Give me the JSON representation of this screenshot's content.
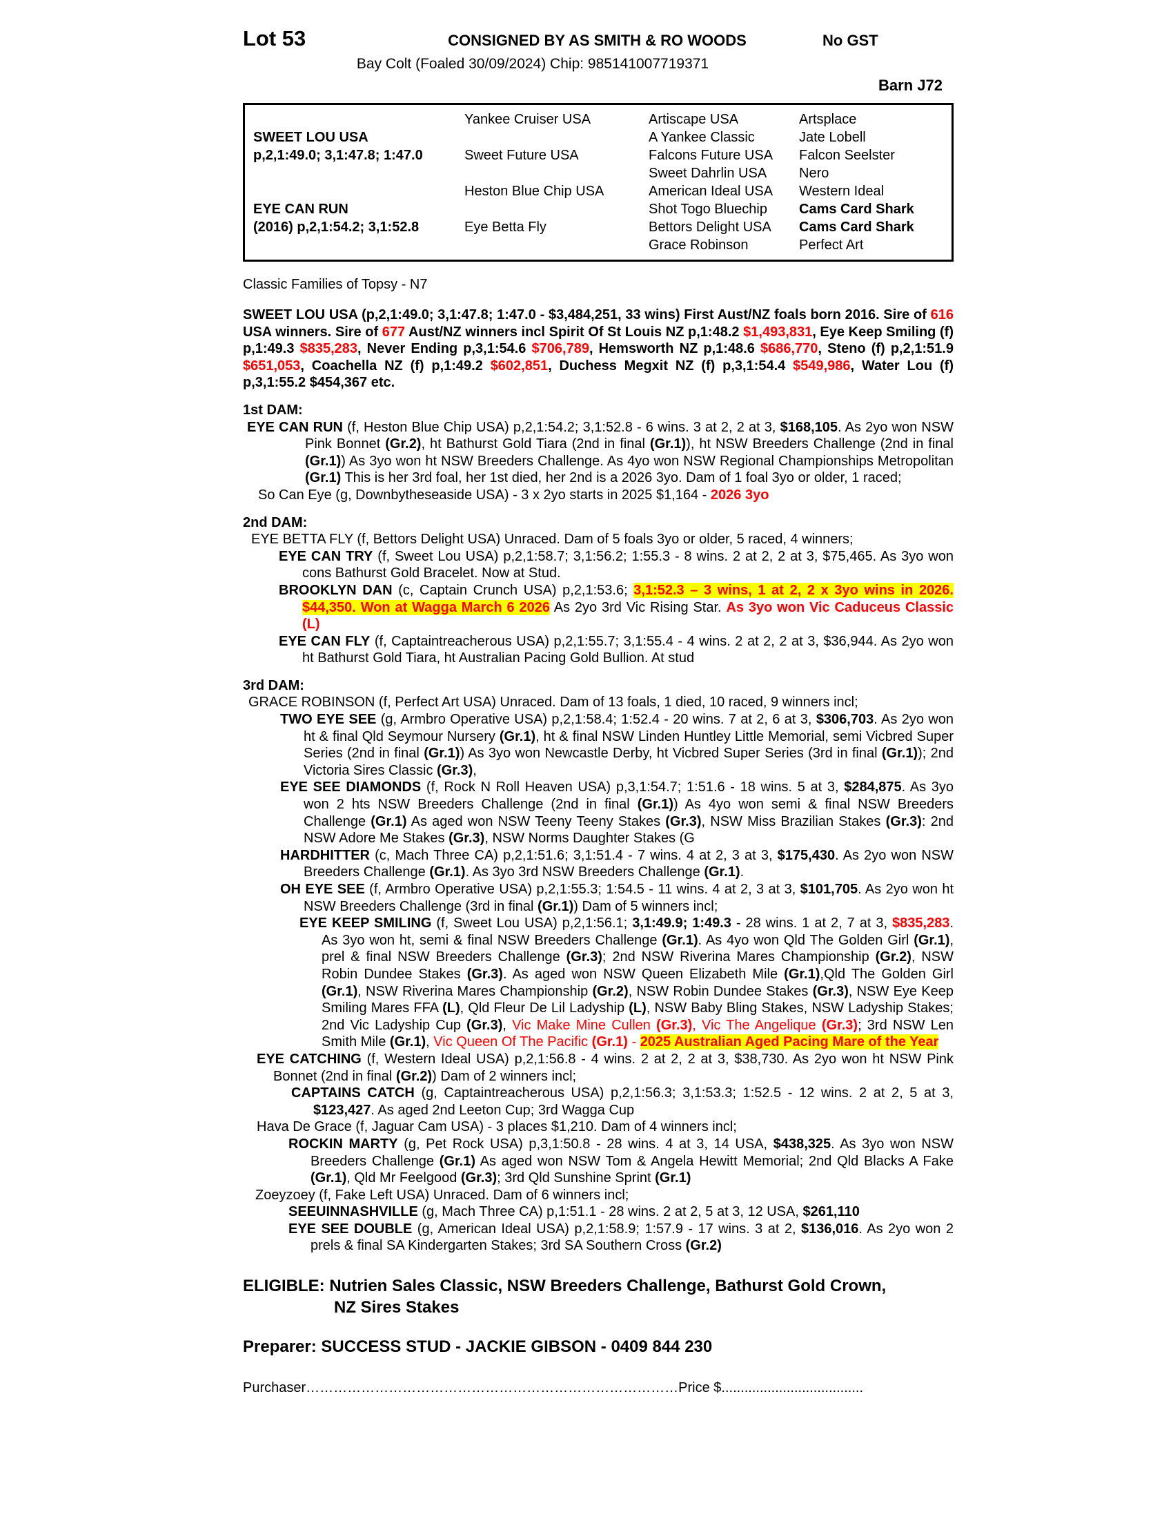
{
  "colors": {
    "red": "#ff0000",
    "highlight": "#ffff00"
  },
  "header": {
    "lot": "Lot 53",
    "consigned": "CONSIGNED BY AS SMITH & RO WOODS",
    "gst": "No GST",
    "description": "Bay Colt (Foaled 30/09/2024) Chip: 985141007719371",
    "barn": "Barn J72"
  },
  "pedigree": {
    "rows": [
      [
        "",
        "Yankee Cruiser USA",
        "Artiscape USA",
        "Artsplace"
      ],
      [
        "SWEET LOU USA",
        "",
        "A Yankee Classic",
        "Jate Lobell"
      ],
      [
        "p,2,1:49.0; 3,1:47.8; 1:47.0",
        "Sweet Future USA",
        "Falcons Future USA",
        "Falcon Seelster"
      ],
      [
        "",
        "",
        "Sweet Dahrlin USA",
        "Nero"
      ],
      [
        "",
        "Heston Blue Chip USA",
        "American Ideal USA",
        "Western Ideal"
      ],
      [
        "EYE CAN RUN",
        "",
        "Shot Togo Bluechip",
        "Cams Card Shark"
      ],
      [
        "(2016) p,2,1:54.2; 3,1:52.8",
        "Eye Betta Fly",
        "Bettors Delight USA",
        "Cams Card Shark"
      ],
      [
        "",
        "",
        "Grace Robinson",
        "Perfect Art"
      ]
    ]
  },
  "family_line": "Classic Families of Topsy - N7",
  "dam_headings": {
    "dam1": "1st DAM:",
    "dam2": "2nd DAM:",
    "dam3": "3rd DAM:"
  },
  "rich": {
    "sire": [
      {
        "t": "SWEET LOU USA (p,2,1:49.0; 3,1:47.8; 1:47.0 - $3,484,251, 33 wins) First Aust/NZ foals born 2016. Sire of ",
        "b": true
      },
      {
        "t": "616",
        "b": true,
        "c": "red"
      },
      {
        "t": " USA winners. Sire of ",
        "b": true
      },
      {
        "t": "677",
        "b": true,
        "c": "red"
      },
      {
        "t": " Aust/NZ winners incl Spirit Of St Louis NZ p,1:48.2 ",
        "b": true
      },
      {
        "t": "$1,493,831",
        "b": true,
        "c": "red"
      },
      {
        "t": ", Eye Keep Smiling (f) p,1:49.3 ",
        "b": true
      },
      {
        "t": "$835,283",
        "b": true,
        "c": "red"
      },
      {
        "t": ", Never Ending p,3,1:54.6 ",
        "b": true
      },
      {
        "t": "$706,789",
        "b": true,
        "c": "red"
      },
      {
        "t": ", Hemsworth NZ p,1:48.6 ",
        "b": true
      },
      {
        "t": "$686,770",
        "b": true,
        "c": "red"
      },
      {
        "t": ", Steno (f) p,2,1:51.9 ",
        "b": true
      },
      {
        "t": "$651,053",
        "b": true,
        "c": "red"
      },
      {
        "t": ", Coachella NZ (f) p,1:49.2 ",
        "b": true
      },
      {
        "t": "$602,851",
        "b": true,
        "c": "red"
      },
      {
        "t": ", Duchess Megxit NZ (f) p,3,1:54.4 ",
        "b": true
      },
      {
        "t": "$549,986",
        "b": true,
        "c": "red"
      },
      {
        "t": ", Water Lou (f) p,3,1:55.2 $454,367 etc.",
        "b": true
      }
    ],
    "eye_can_run": [
      {
        "t": "EYE CAN RUN",
        "b": true
      },
      {
        "t": " (f, Heston Blue Chip USA) p,2,1:54.2; 3,1:52.8 - 6 wins. 3 at 2, 2 at 3, "
      },
      {
        "t": "$168,105",
        "b": true
      },
      {
        "t": ". As 2yo won NSW Pink Bonnet "
      },
      {
        "t": "(Gr.2)",
        "b": true
      },
      {
        "t": ", ht Bathurst Gold Tiara (2nd in final "
      },
      {
        "t": "(Gr.1)",
        "b": true
      },
      {
        "t": "), ht NSW Breeders Challenge (2nd in final "
      },
      {
        "t": "(Gr.1)",
        "b": true
      },
      {
        "t": ") As 3yo won ht NSW Breeders Challenge. As 4yo won NSW Regional Championships Metropolitan "
      },
      {
        "t": "(Gr.1)",
        "b": true
      },
      {
        "t": " This is her 3rd foal, her 1st died, her 2nd is a 2026 3yo. Dam of 1 foal 3yo or older, 1 raced;"
      }
    ],
    "so_can_eye": [
      {
        "t": "So Can Eye (g, Downbytheseaside USA) - 3 x 2yo starts in 2025 $1,164 - "
      },
      {
        "t": "2026 3yo",
        "b": true,
        "c": "red"
      }
    ],
    "eye_betta_fly": [
      {
        "t": "EYE BETTA FLY (f, Bettors Delight USA) Unraced. Dam of 5 foals 3yo or older, 5 raced, 4 winners;"
      }
    ],
    "eye_can_try": [
      {
        "t": "EYE CAN TRY",
        "b": true
      },
      {
        "t": " (f, Sweet Lou USA) p,2,1:58.7; 3,1:56.2; 1:55.3 - 8 wins. 2 at 2, 2 at 3, $75,465. As 3yo won cons Bathurst Gold Bracelet. Now at Stud."
      }
    ],
    "brooklyn_dan": [
      {
        "t": "BROOKLYN DAN",
        "b": true
      },
      {
        "t": " (c, Captain Crunch USA) p,2,1:53.6; "
      },
      {
        "t": "3,1:52.3 – 3 wins, 1 at 2, 2 x 3yo wins in 2026. $44,350. Won at Wagga March 6 2026",
        "b": true,
        "c": "red",
        "hl": true
      },
      {
        "t": " As 2yo 3rd Vic Rising Star. "
      },
      {
        "t": "As 3yo won Vic Caduceus Classic (L)",
        "b": true,
        "c": "red"
      }
    ],
    "eye_can_fly": [
      {
        "t": "EYE CAN FLY",
        "b": true
      },
      {
        "t": " (f, Captaintreacherous USA) p,2,1:55.7; 3,1:55.4 - 4 wins. 2 at 2, 2 at 3, $36,944. As 2yo won ht Bathurst Gold Tiara, ht Australian Pacing Gold Bullion. At stud"
      }
    ],
    "grace_robinson": [
      {
        "t": "GRACE ROBINSON (f, Perfect Art USA) Unraced. Dam of 13 foals, 1 died, 10 raced, 9 winners incl;"
      }
    ],
    "two_eye_see": [
      {
        "t": "TWO EYE SEE",
        "b": true
      },
      {
        "t": " (g, Armbro Operative USA) p,2,1:58.4; 1:52.4 - 20 wins. 7 at 2, 6 at 3, "
      },
      {
        "t": "$306,703",
        "b": true
      },
      {
        "t": ". As 2yo won ht & final Qld Seymour Nursery "
      },
      {
        "t": "(Gr.1)",
        "b": true
      },
      {
        "t": ", ht & final NSW Linden Huntley Little Memorial, semi Vicbred Super Series (2nd in final "
      },
      {
        "t": "(Gr.1)",
        "b": true
      },
      {
        "t": ") As 3yo won Newcastle Derby, ht Vicbred Super Series (3rd in final "
      },
      {
        "t": "(Gr.1)",
        "b": true
      },
      {
        "t": "); 2nd Victoria Sires Classic "
      },
      {
        "t": "(Gr.3)",
        "b": true
      },
      {
        "t": ","
      }
    ],
    "eye_see_diamonds": [
      {
        "t": "EYE SEE DIAMONDS",
        "b": true
      },
      {
        "t": " (f, Rock N Roll Heaven USA) p,3,1:54.7; 1:51.6 - 18 wins. 5 at 3, "
      },
      {
        "t": "$284,875",
        "b": true
      },
      {
        "t": ". As 3yo won 2 hts NSW Breeders Challenge (2nd in final "
      },
      {
        "t": "(Gr.1)",
        "b": true
      },
      {
        "t": ") As 4yo won semi & final NSW Breeders Challenge "
      },
      {
        "t": "(Gr.1)",
        "b": true
      },
      {
        "t": " As aged won NSW Teeny Teeny Stakes "
      },
      {
        "t": "(Gr.3)",
        "b": true
      },
      {
        "t": ", NSW Miss Brazilian Stakes "
      },
      {
        "t": "(Gr.3)",
        "b": true
      },
      {
        "t": ": 2nd NSW Adore Me Stakes "
      },
      {
        "t": "(Gr.3)",
        "b": true
      },
      {
        "t": ", NSW Norms Daughter Stakes (G"
      }
    ],
    "hardhitter": [
      {
        "t": "HARDHITTER",
        "b": true
      },
      {
        "t": " (c, Mach Three CA) p,2,1:51.6; 3,1:51.4 - 7 wins. 4 at 2, 3 at 3, "
      },
      {
        "t": "$175,430",
        "b": true
      },
      {
        "t": ". As 2yo won NSW Breeders Challenge "
      },
      {
        "t": "(Gr.1)",
        "b": true
      },
      {
        "t": ". As 3yo 3rd NSW Breeders Challenge "
      },
      {
        "t": "(Gr.1)",
        "b": true
      },
      {
        "t": "."
      }
    ],
    "oh_eye_see": [
      {
        "t": "OH EYE SEE",
        "b": true
      },
      {
        "t": " (f, Armbro Operative USA) p,2,1:55.3; 1:54.5 - 11 wins. 4 at 2, 3 at 3, "
      },
      {
        "t": "$101,705",
        "b": true
      },
      {
        "t": ". As 2yo won ht NSW Breeders Challenge (3rd in final "
      },
      {
        "t": "(Gr.1)",
        "b": true
      },
      {
        "t": ") Dam of 5 winners incl;"
      }
    ],
    "eye_keep_smiling": [
      {
        "t": "EYE KEEP SMILING",
        "b": true
      },
      {
        "t": " (f, Sweet Lou USA) p,2,1:56.1; "
      },
      {
        "t": "3,1:49.9; 1:49.3",
        "b": true
      },
      {
        "t": " - 28 wins. 1 at 2, 7 at 3, "
      },
      {
        "t": "$835,283",
        "b": true,
        "c": "red"
      },
      {
        "t": ". As 3yo won ht, semi & final NSW Breeders Challenge "
      },
      {
        "t": "(Gr.1)",
        "b": true
      },
      {
        "t": ". As 4yo won Qld The Golden Girl "
      },
      {
        "t": "(Gr.1)",
        "b": true
      },
      {
        "t": ", prel & final NSW Breeders Challenge "
      },
      {
        "t": "(Gr.3)",
        "b": true
      },
      {
        "t": "; 2nd NSW Riverina Mares Championship "
      },
      {
        "t": "(Gr.2)",
        "b": true
      },
      {
        "t": ", NSW Robin Dundee Stakes "
      },
      {
        "t": "(Gr.3)",
        "b": true
      },
      {
        "t": ". As aged won NSW Queen Elizabeth Mile "
      },
      {
        "t": "(Gr.1)",
        "b": true
      },
      {
        "t": ",Qld The Golden Girl "
      },
      {
        "t": "(Gr.1)",
        "b": true
      },
      {
        "t": ", NSW Riverina Mares Championship "
      },
      {
        "t": "(Gr.2)",
        "b": true
      },
      {
        "t": ", NSW Robin Dundee Stakes "
      },
      {
        "t": "(Gr.3)",
        "b": true
      },
      {
        "t": ", NSW Eye Keep Smiling Mares FFA "
      },
      {
        "t": "(L)",
        "b": true
      },
      {
        "t": ", Qld Fleur De Lil Ladyship "
      },
      {
        "t": "(L)",
        "b": true
      },
      {
        "t": ", NSW Baby Bling Stakes, NSW Ladyship Stakes; 2nd Vic Ladyship Cup "
      },
      {
        "t": "(Gr.3)",
        "b": true
      },
      {
        "t": ", "
      },
      {
        "t": "Vic Make Mine Cullen ",
        "c": "red"
      },
      {
        "t": "(Gr.3)",
        "b": true,
        "c": "red"
      },
      {
        "t": ", Vic The Angelique ",
        "c": "red"
      },
      {
        "t": "(Gr.3)",
        "b": true,
        "c": "red"
      },
      {
        "t": "; 3rd NSW Len Smith Mile "
      },
      {
        "t": "(Gr.1)",
        "b": true
      },
      {
        "t": ", "
      },
      {
        "t": "Vic Queen Of The Pacific ",
        "c": "red"
      },
      {
        "t": "(Gr.1)",
        "b": true,
        "c": "red"
      },
      {
        "t": " - ",
        "c": "red"
      },
      {
        "t": "2025 Australian Aged Pacing Mare of the Year",
        "b": true,
        "c": "red",
        "hl": true
      }
    ],
    "eye_catching": [
      {
        "t": "EYE CATCHING",
        "b": true
      },
      {
        "t": " (f, Western Ideal USA) p,2,1:56.8 - 4 wins. 2 at 2, 2 at 3, $38,730. As 2yo won ht NSW Pink Bonnet (2nd in final "
      },
      {
        "t": "(Gr.2)",
        "b": true
      },
      {
        "t": ") Dam of 2 winners incl;"
      }
    ],
    "captains_catch": [
      {
        "t": "CAPTAINS CATCH",
        "b": true
      },
      {
        "t": " (g, Captaintreacherous USA) p,2,1:56.3; 3,1:53.3; 1:52.5 - 12 wins. 2 at 2, 5 at 3, "
      },
      {
        "t": "$123,427",
        "b": true
      },
      {
        "t": ". As aged 2nd Leeton Cup; 3rd Wagga Cup"
      }
    ],
    "hava_de_grace": [
      {
        "t": "Hava De Grace (f, Jaguar Cam USA) - 3 places $1,210. Dam of 4 winners incl;"
      }
    ],
    "rockin_marty": [
      {
        "t": "ROCKIN MARTY",
        "b": true
      },
      {
        "t": " (g, Pet Rock USA) p,3,1:50.8 - 28 wins. 4 at 3, 14 USA, "
      },
      {
        "t": "$438,325",
        "b": true
      },
      {
        "t": ". As 3yo won NSW Breeders Challenge "
      },
      {
        "t": "(Gr.1)",
        "b": true
      },
      {
        "t": " As aged won NSW Tom & Angela Hewitt Memorial; 2nd Qld Blacks A Fake "
      },
      {
        "t": "(Gr.1)",
        "b": true
      },
      {
        "t": ", Qld Mr Feelgood "
      },
      {
        "t": "(Gr.3)",
        "b": true
      },
      {
        "t": "; 3rd Qld Sunshine Sprint "
      },
      {
        "t": "(Gr.1)",
        "b": true
      }
    ],
    "zoeyzoey": [
      {
        "t": "Zoeyzoey (f, Fake Left USA) Unraced. Dam of 6 winners incl;"
      }
    ],
    "seeuinnashville": [
      {
        "t": "SEEUINNASHVILLE",
        "b": true
      },
      {
        "t": " (g, Mach Three CA) p,1:51.1 - 28 wins. 2 at 2, 5 at 3, 12 USA, "
      },
      {
        "t": "$261,110",
        "b": true
      }
    ],
    "eye_see_double": [
      {
        "t": "EYE SEE DOUBLE",
        "b": true
      },
      {
        "t": " (g, American Ideal USA) p,2,1:58.9; 1:57.9 - 17 wins. 3 at 2, "
      },
      {
        "t": "$136,016",
        "b": true
      },
      {
        "t": ". As 2yo won 2 prels & final SA Kindergarten Stakes; 3rd SA Southern Cross "
      },
      {
        "t": "(Gr.2)",
        "b": true
      }
    ]
  },
  "footer": {
    "eligible_line1": "ELIGIBLE: Nutrien Sales Classic, NSW Breeders Challenge, Bathurst Gold Crown,",
    "eligible_line2": "NZ Sires Stakes",
    "preparer": "Preparer: SUCCESS STUD - JACKIE GIBSON - 0409 844 230",
    "purchaser_label": "Purchaser",
    "purchaser_dots": "………………………………………………………………………",
    "price_label": "Price $",
    "price_dots": "....................................."
  }
}
